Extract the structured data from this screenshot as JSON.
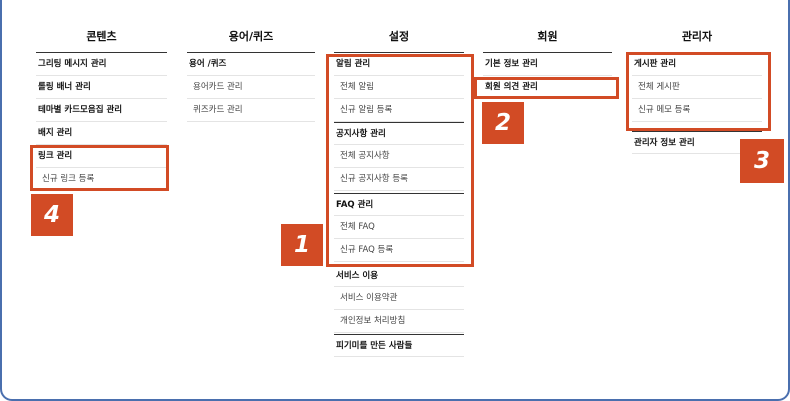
{
  "columns": [
    {
      "title": "콘텐츠",
      "items": [
        "그리팅 메시지 관리",
        "롤링 배너 관리",
        "테마별 카드모음집 관리",
        "배지 관리",
        "링크 관리",
        "신규 링크 등록"
      ]
    },
    {
      "title": "용어/퀴즈",
      "items": [
        "용어 /퀴즈",
        "용어카드 관리",
        "퀴즈카드 관리"
      ]
    },
    {
      "title": "설정",
      "items": [
        "알림 관리",
        "전체 알림",
        "신규 알림 등록",
        "공지사항 관리",
        "전체 공지사항",
        "신규 공지사항 등록",
        "FAQ 관리",
        "전체 FAQ",
        "신규 FAQ 등록",
        "서비스 이용",
        "서비스 이용약관",
        "개인정보 처리방침",
        "피기미를 만든 사람들"
      ]
    },
    {
      "title": "회원",
      "items": [
        "기본 정보 관리",
        "회원 의견 관리"
      ]
    },
    {
      "title": "관리자",
      "items": [
        "게시판 관리",
        "전체 게시판",
        "신규 메모 등록",
        "관리자 정보 관리"
      ]
    }
  ],
  "badges": [
    "1",
    "2",
    "3",
    "4"
  ],
  "colors": {
    "accent": "#d24b25",
    "frame": "#4a6fae"
  }
}
